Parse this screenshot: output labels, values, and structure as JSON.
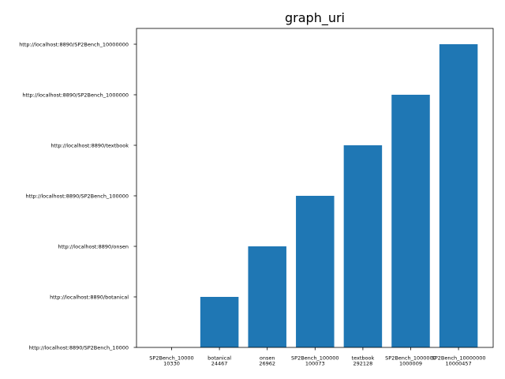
{
  "chart_data": {
    "type": "bar",
    "title": "graph_uri",
    "xlabel": "",
    "ylabel": "",
    "categories": [
      [
        "SP2Bench_10000",
        "10330"
      ],
      [
        "botanical",
        "24467"
      ],
      [
        "onsen",
        "26962"
      ],
      [
        "SP2Bench_100000",
        "100073"
      ],
      [
        "textbook",
        "292128"
      ],
      [
        "SP2Bench_1000000",
        "1000009"
      ],
      [
        "SP2Bench_10000000",
        "10000457"
      ]
    ],
    "y_categories": [
      "http://localhost:8890/SP2Bench_10000",
      "http://localhost:8890/botanical",
      "http://localhost:8890/onsen",
      "http://localhost:8890/SP2Bench_100000",
      "http://localhost:8890/textbook",
      "http://localhost:8890/SP2Bench_1000000",
      "http://localhost:8890/SP2Bench_10000000"
    ],
    "values": [
      "http://localhost:8890/SP2Bench_10000",
      "http://localhost:8890/botanical",
      "http://localhost:8890/onsen",
      "http://localhost:8890/SP2Bench_100000",
      "http://localhost:8890/textbook",
      "http://localhost:8890/SP2Bench_1000000",
      "http://localhost:8890/SP2Bench_10000000"
    ],
    "bar_color": "#1f77b4",
    "grid": false,
    "legend": "none"
  }
}
